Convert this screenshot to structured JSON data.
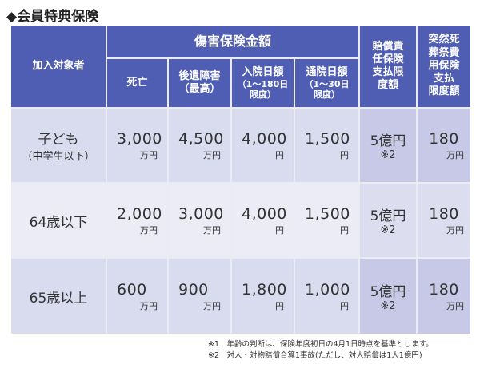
{
  "title": "◆会員特典保険",
  "header": {
    "applicant": "加入対象者",
    "group": "傷害保険金額",
    "death": "死亡",
    "disability_1": "後遺障害",
    "disability_2": "（最高）",
    "hosp_1": "入院日額",
    "hosp_2": "（1〜180日",
    "hosp_3": "限度）",
    "outpatient_1": "通院日額",
    "outpatient_2": "（1〜30日",
    "outpatient_3": "限度）",
    "liability_1": "賠償責",
    "liability_2": "任保険",
    "liability_3": "支払限",
    "liability_4": "度額",
    "funeral_1": "突然死",
    "funeral_2": "葬祭費",
    "funeral_3": "用保険",
    "funeral_4": "支払",
    "funeral_5": "限度額"
  },
  "rows": [
    {
      "label": "子ども",
      "sublabel": "（中学生以下）",
      "death": "3,000",
      "death_unit": "万円",
      "disability": "4,500",
      "disability_unit": "万円",
      "hosp": "4,000",
      "hosp_unit": "円",
      "outpatient": "1,500",
      "outpatient_unit": "円",
      "liability": "5億円",
      "liability_note": "※2",
      "funeral": "180",
      "funeral_unit": "万円"
    },
    {
      "label": "64歳以下",
      "sublabel": "",
      "death": "2,000",
      "death_unit": "万円",
      "disability": "3,000",
      "disability_unit": "万円",
      "hosp": "4,000",
      "hosp_unit": "円",
      "outpatient": "1,500",
      "outpatient_unit": "円",
      "liability": "5億円",
      "liability_note": "※2",
      "funeral": "180",
      "funeral_unit": "万円"
    },
    {
      "label": "65歳以上",
      "sublabel": "",
      "death": "600",
      "death_unit": "万円",
      "disability": "900",
      "disability_unit": "万円",
      "hosp": "1,800",
      "hosp_unit": "円",
      "outpatient": "1,000",
      "outpatient_unit": "円",
      "liability": "5億円",
      "liability_note": "※2",
      "funeral": "180",
      "funeral_unit": "万円"
    }
  ],
  "footnotes": {
    "note1": "※1　年齢の判断は、保険年度初日の4月1日時点を基準とします。",
    "note2": "※2　対人・対物賠償合算1事故(ただし、対人賠償は1人1億円)"
  }
}
